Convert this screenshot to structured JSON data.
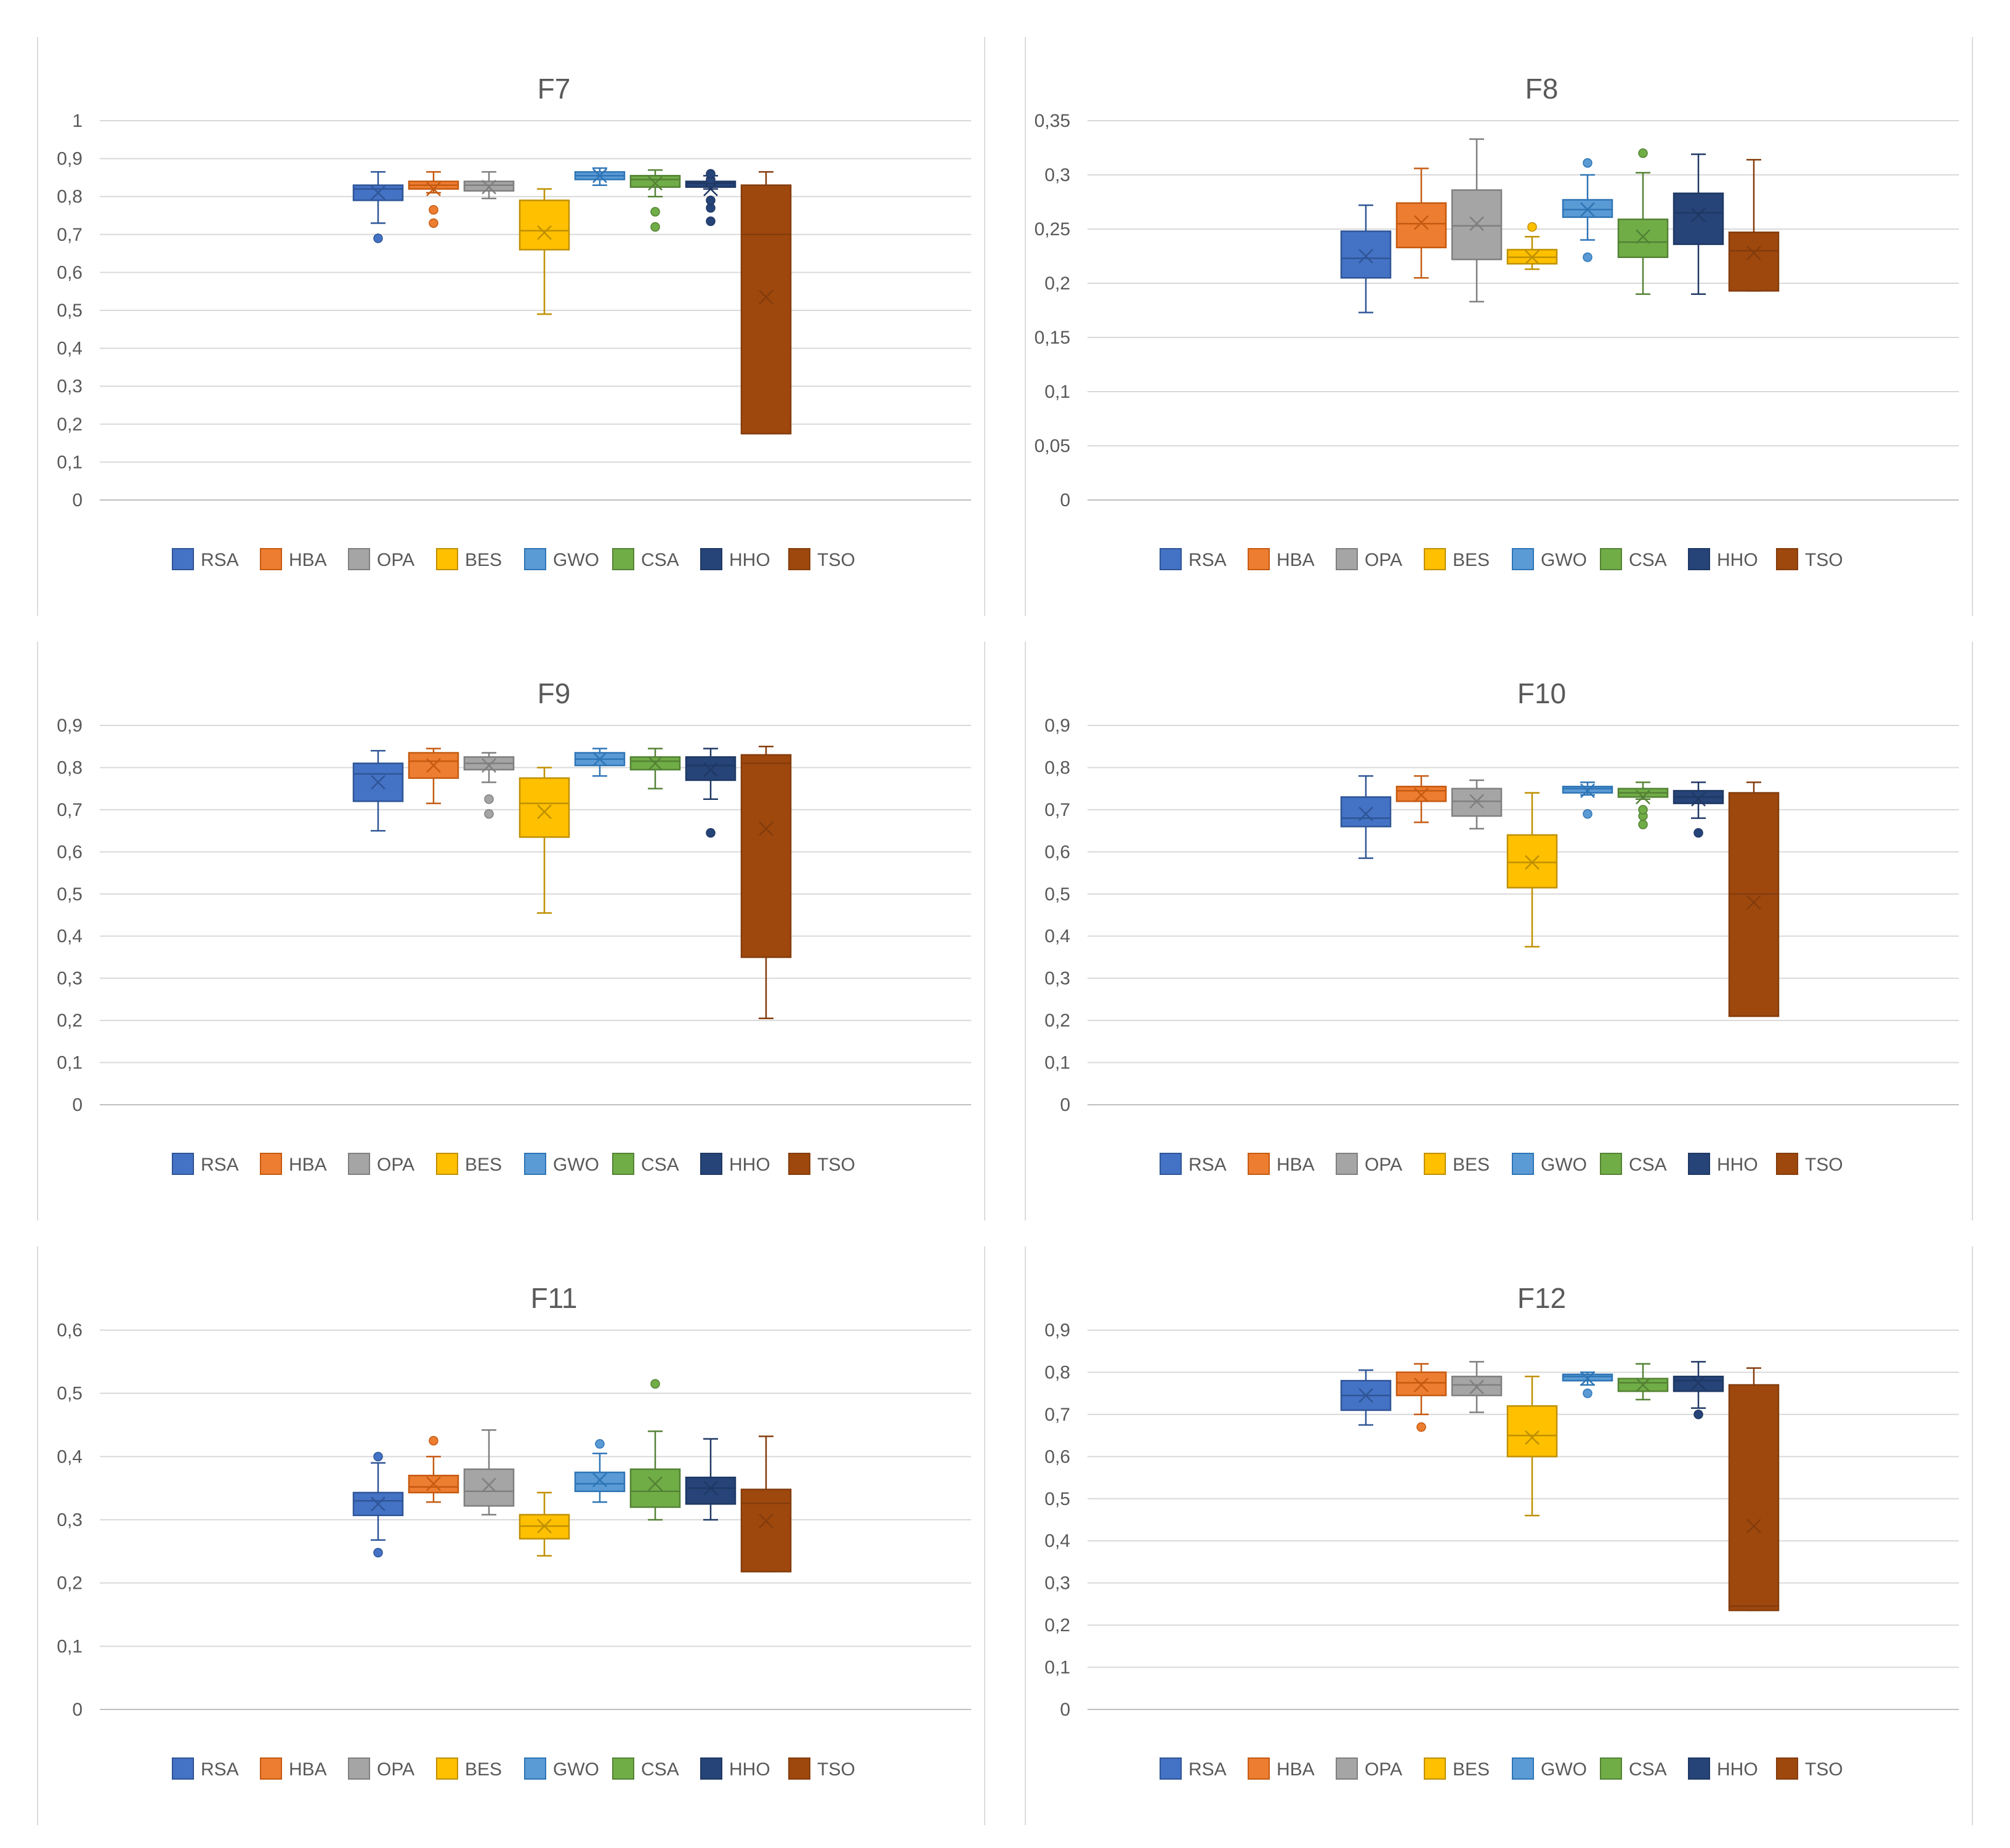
{
  "series_names": [
    "RSA",
    "HBA",
    "OPA",
    "BES",
    "GWO",
    "CSA",
    "HHO",
    "TSO"
  ],
  "series_colors": {
    "RSA": {
      "fill": "#4472C4",
      "stroke": "#2F5597"
    },
    "HBA": {
      "fill": "#ED7D31",
      "stroke": "#C55A11"
    },
    "OPA": {
      "fill": "#A5A5A5",
      "stroke": "#7F7F7F"
    },
    "BES": {
      "fill": "#FFC000",
      "stroke": "#BF9000"
    },
    "GWO": {
      "fill": "#5B9BD5",
      "stroke": "#2E75B6"
    },
    "CSA": {
      "fill": "#70AD47",
      "stroke": "#548235"
    },
    "HHO": {
      "fill": "#264478",
      "stroke": "#1F3864"
    },
    "TSO": {
      "fill": "#9E480E",
      "stroke": "#843C0C"
    }
  },
  "chart_data": [
    {
      "type": "boxplot",
      "title": "F7",
      "ylim": [
        0,
        1
      ],
      "yticks": [
        "0",
        "0,1",
        "0,2",
        "0,3",
        "0,4",
        "0,5",
        "0,6",
        "0,7",
        "0,8",
        "0,9",
        "1"
      ],
      "grid": true,
      "legend": "bottom",
      "series": [
        {
          "name": "RSA",
          "min": 0.73,
          "q1": 0.79,
          "median": 0.82,
          "q3": 0.83,
          "max": 0.865,
          "mean": 0.81,
          "outliers": [
            0.69
          ]
        },
        {
          "name": "HBA",
          "min": 0.81,
          "q1": 0.82,
          "median": 0.83,
          "q3": 0.84,
          "max": 0.865,
          "mean": 0.82,
          "outliers": [
            0.73,
            0.765
          ]
        },
        {
          "name": "OPA",
          "min": 0.795,
          "q1": 0.815,
          "median": 0.83,
          "q3": 0.84,
          "max": 0.865,
          "mean": 0.825,
          "outliers": []
        },
        {
          "name": "BES",
          "min": 0.49,
          "q1": 0.66,
          "median": 0.71,
          "q3": 0.79,
          "max": 0.82,
          "mean": 0.705,
          "outliers": []
        },
        {
          "name": "GWO",
          "min": 0.83,
          "q1": 0.845,
          "median": 0.855,
          "q3": 0.865,
          "max": 0.875,
          "mean": 0.855,
          "outliers": []
        },
        {
          "name": "CSA",
          "min": 0.8,
          "q1": 0.825,
          "median": 0.845,
          "q3": 0.855,
          "max": 0.87,
          "mean": 0.835,
          "outliers": [
            0.72,
            0.76
          ]
        },
        {
          "name": "HHO",
          "min": 0.82,
          "q1": 0.825,
          "median": 0.835,
          "q3": 0.84,
          "max": 0.855,
          "mean": 0.82,
          "outliers": [
            0.735,
            0.77,
            0.79,
            0.845,
            0.86
          ]
        },
        {
          "name": "TSO",
          "min": 0.175,
          "q1": 0.175,
          "median": 0.7,
          "q3": 0.83,
          "max": 0.865,
          "mean": 0.535,
          "outliers": []
        }
      ]
    },
    {
      "type": "boxplot",
      "title": "F8",
      "ylim": [
        0,
        0.35
      ],
      "yticks": [
        "0",
        "0,05",
        "0,1",
        "0,15",
        "0,2",
        "0,25",
        "0,3",
        "0,35"
      ],
      "grid": true,
      "legend": "bottom",
      "series": [
        {
          "name": "RSA",
          "min": 0.173,
          "q1": 0.205,
          "median": 0.223,
          "q3": 0.248,
          "max": 0.272,
          "mean": 0.225,
          "outliers": []
        },
        {
          "name": "HBA",
          "min": 0.205,
          "q1": 0.233,
          "median": 0.255,
          "q3": 0.274,
          "max": 0.306,
          "mean": 0.256,
          "outliers": []
        },
        {
          "name": "OPA",
          "min": 0.183,
          "q1": 0.222,
          "median": 0.253,
          "q3": 0.286,
          "max": 0.333,
          "mean": 0.255,
          "outliers": []
        },
        {
          "name": "BES",
          "min": 0.213,
          "q1": 0.218,
          "median": 0.224,
          "q3": 0.231,
          "max": 0.243,
          "mean": 0.224,
          "outliers": [
            0.252
          ]
        },
        {
          "name": "GWO",
          "min": 0.24,
          "q1": 0.261,
          "median": 0.268,
          "q3": 0.277,
          "max": 0.3,
          "mean": 0.268,
          "outliers": [
            0.224,
            0.311
          ]
        },
        {
          "name": "CSA",
          "min": 0.19,
          "q1": 0.224,
          "median": 0.238,
          "q3": 0.259,
          "max": 0.302,
          "mean": 0.243,
          "outliers": [
            0.32
          ]
        },
        {
          "name": "HHO",
          "min": 0.19,
          "q1": 0.236,
          "median": 0.265,
          "q3": 0.283,
          "max": 0.319,
          "mean": 0.263,
          "outliers": []
        },
        {
          "name": "TSO",
          "min": 0.193,
          "q1": 0.193,
          "median": 0.23,
          "q3": 0.247,
          "max": 0.314,
          "mean": 0.228,
          "outliers": []
        }
      ]
    },
    {
      "type": "boxplot",
      "title": "F9",
      "ylim": [
        0,
        0.9
      ],
      "yticks": [
        "0",
        "0,1",
        "0,2",
        "0,3",
        "0,4",
        "0,5",
        "0,6",
        "0,7",
        "0,8",
        "0,9"
      ],
      "grid": true,
      "legend": "bottom",
      "series": [
        {
          "name": "RSA",
          "min": 0.65,
          "q1": 0.72,
          "median": 0.785,
          "q3": 0.81,
          "max": 0.84,
          "mean": 0.765,
          "outliers": []
        },
        {
          "name": "HBA",
          "min": 0.715,
          "q1": 0.775,
          "median": 0.815,
          "q3": 0.835,
          "max": 0.845,
          "mean": 0.805,
          "outliers": []
        },
        {
          "name": "OPA",
          "min": 0.765,
          "q1": 0.795,
          "median": 0.81,
          "q3": 0.825,
          "max": 0.835,
          "mean": 0.805,
          "outliers": [
            0.69,
            0.725
          ]
        },
        {
          "name": "BES",
          "min": 0.455,
          "q1": 0.635,
          "median": 0.715,
          "q3": 0.775,
          "max": 0.8,
          "mean": 0.695,
          "outliers": []
        },
        {
          "name": "GWO",
          "min": 0.78,
          "q1": 0.805,
          "median": 0.82,
          "q3": 0.835,
          "max": 0.845,
          "mean": 0.82,
          "outliers": []
        },
        {
          "name": "CSA",
          "min": 0.75,
          "q1": 0.795,
          "median": 0.815,
          "q3": 0.825,
          "max": 0.845,
          "mean": 0.81,
          "outliers": []
        },
        {
          "name": "HHO",
          "min": 0.725,
          "q1": 0.77,
          "median": 0.805,
          "q3": 0.825,
          "max": 0.845,
          "mean": 0.795,
          "outliers": [
            0.645
          ]
        },
        {
          "name": "TSO",
          "min": 0.205,
          "q1": 0.35,
          "median": 0.81,
          "q3": 0.83,
          "max": 0.85,
          "mean": 0.655,
          "outliers": []
        }
      ]
    },
    {
      "type": "boxplot",
      "title": "F10",
      "ylim": [
        0,
        0.9
      ],
      "yticks": [
        "0",
        "0,1",
        "0,2",
        "0,3",
        "0,4",
        "0,5",
        "0,6",
        "0,7",
        "0,8",
        "0,9"
      ],
      "grid": true,
      "legend": "bottom",
      "series": [
        {
          "name": "RSA",
          "min": 0.585,
          "q1": 0.66,
          "median": 0.68,
          "q3": 0.73,
          "max": 0.78,
          "mean": 0.69,
          "outliers": []
        },
        {
          "name": "HBA",
          "min": 0.67,
          "q1": 0.72,
          "median": 0.745,
          "q3": 0.755,
          "max": 0.78,
          "mean": 0.735,
          "outliers": []
        },
        {
          "name": "OPA",
          "min": 0.655,
          "q1": 0.685,
          "median": 0.72,
          "q3": 0.75,
          "max": 0.77,
          "mean": 0.72,
          "outliers": []
        },
        {
          "name": "BES",
          "min": 0.375,
          "q1": 0.515,
          "median": 0.575,
          "q3": 0.64,
          "max": 0.74,
          "mean": 0.575,
          "outliers": []
        },
        {
          "name": "GWO",
          "min": 0.735,
          "q1": 0.74,
          "median": 0.75,
          "q3": 0.755,
          "max": 0.765,
          "mean": 0.745,
          "outliers": [
            0.69
          ]
        },
        {
          "name": "CSA",
          "min": 0.725,
          "q1": 0.73,
          "median": 0.74,
          "q3": 0.75,
          "max": 0.765,
          "mean": 0.73,
          "outliers": [
            0.665,
            0.685,
            0.7
          ]
        },
        {
          "name": "HHO",
          "min": 0.68,
          "q1": 0.715,
          "median": 0.73,
          "q3": 0.745,
          "max": 0.765,
          "mean": 0.725,
          "outliers": [
            0.645
          ]
        },
        {
          "name": "TSO",
          "min": 0.21,
          "q1": 0.21,
          "median": 0.5,
          "q3": 0.74,
          "max": 0.765,
          "mean": 0.48,
          "outliers": []
        }
      ]
    },
    {
      "type": "boxplot",
      "title": "F11",
      "ylim": [
        0,
        0.6
      ],
      "yticks": [
        "0",
        "0,1",
        "0,2",
        "0,3",
        "0,4",
        "0,5",
        "0,6"
      ],
      "grid": true,
      "legend": "bottom",
      "series": [
        {
          "name": "RSA",
          "min": 0.268,
          "q1": 0.307,
          "median": 0.33,
          "q3": 0.343,
          "max": 0.39,
          "mean": 0.325,
          "outliers": [
            0.248,
            0.4
          ]
        },
        {
          "name": "HBA",
          "min": 0.328,
          "q1": 0.343,
          "median": 0.352,
          "q3": 0.37,
          "max": 0.4,
          "mean": 0.357,
          "outliers": [
            0.425
          ]
        },
        {
          "name": "OPA",
          "min": 0.308,
          "q1": 0.322,
          "median": 0.345,
          "q3": 0.38,
          "max": 0.442,
          "mean": 0.355,
          "outliers": []
        },
        {
          "name": "BES",
          "min": 0.243,
          "q1": 0.27,
          "median": 0.29,
          "q3": 0.308,
          "max": 0.343,
          "mean": 0.29,
          "outliers": []
        },
        {
          "name": "GWO",
          "min": 0.328,
          "q1": 0.345,
          "median": 0.357,
          "q3": 0.375,
          "max": 0.405,
          "mean": 0.363,
          "outliers": [
            0.42
          ]
        },
        {
          "name": "CSA",
          "min": 0.3,
          "q1": 0.32,
          "median": 0.345,
          "q3": 0.38,
          "max": 0.44,
          "mean": 0.357,
          "outliers": [
            0.515
          ]
        },
        {
          "name": "HHO",
          "min": 0.3,
          "q1": 0.325,
          "median": 0.35,
          "q3": 0.367,
          "max": 0.428,
          "mean": 0.35,
          "outliers": []
        },
        {
          "name": "TSO",
          "min": 0.218,
          "q1": 0.218,
          "median": 0.326,
          "q3": 0.348,
          "max": 0.432,
          "mean": 0.298,
          "outliers": []
        }
      ]
    },
    {
      "type": "boxplot",
      "title": "F12",
      "ylim": [
        0,
        0.9
      ],
      "yticks": [
        "0",
        "0,1",
        "0,2",
        "0,3",
        "0,4",
        "0,5",
        "0,6",
        "0,7",
        "0,8",
        "0,9"
      ],
      "grid": true,
      "legend": "bottom",
      "series": [
        {
          "name": "RSA",
          "min": 0.675,
          "q1": 0.71,
          "median": 0.745,
          "q3": 0.78,
          "max": 0.805,
          "mean": 0.745,
          "outliers": []
        },
        {
          "name": "HBA",
          "min": 0.7,
          "q1": 0.745,
          "median": 0.775,
          "q3": 0.8,
          "max": 0.82,
          "mean": 0.77,
          "outliers": [
            0.67
          ]
        },
        {
          "name": "OPA",
          "min": 0.705,
          "q1": 0.745,
          "median": 0.77,
          "q3": 0.79,
          "max": 0.825,
          "mean": 0.765,
          "outliers": []
        },
        {
          "name": "BES",
          "min": 0.46,
          "q1": 0.6,
          "median": 0.65,
          "q3": 0.72,
          "max": 0.79,
          "mean": 0.645,
          "outliers": []
        },
        {
          "name": "GWO",
          "min": 0.77,
          "q1": 0.78,
          "median": 0.79,
          "q3": 0.795,
          "max": 0.8,
          "mean": 0.785,
          "outliers": [
            0.75
          ]
        },
        {
          "name": "CSA",
          "min": 0.735,
          "q1": 0.755,
          "median": 0.775,
          "q3": 0.785,
          "max": 0.82,
          "mean": 0.77,
          "outliers": []
        },
        {
          "name": "HHO",
          "min": 0.715,
          "q1": 0.755,
          "median": 0.78,
          "q3": 0.79,
          "max": 0.825,
          "mean": 0.775,
          "outliers": [
            0.7
          ]
        },
        {
          "name": "TSO",
          "min": 0.235,
          "q1": 0.235,
          "median": 0.245,
          "q3": 0.77,
          "max": 0.81,
          "mean": 0.435,
          "outliers": []
        }
      ]
    }
  ]
}
